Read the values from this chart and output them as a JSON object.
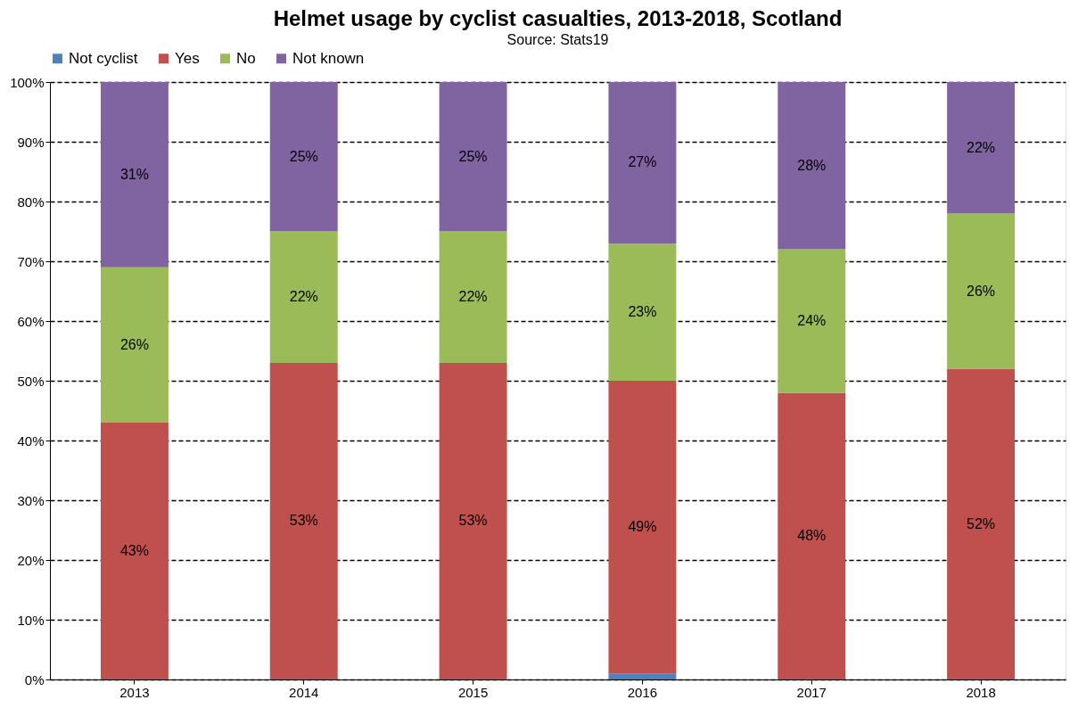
{
  "chart_data": {
    "type": "bar",
    "title": "Helmet usage by cyclist casualties, 2013-2018, Scotland",
    "annotations": [
      "Source: Stats19"
    ],
    "categories": [
      "2013",
      "2014",
      "2015",
      "2016",
      "2017",
      "2018"
    ],
    "stacked": true,
    "series": [
      {
        "name": "Not cyclist",
        "color": "#4f81bd",
        "values": [
          0,
          0,
          0,
          1,
          0,
          0
        ],
        "value_labels": [
          null,
          null,
          null,
          null,
          null,
          null
        ]
      },
      {
        "name": "Yes",
        "color": "#c0504d",
        "values": [
          43,
          53,
          53,
          49,
          48,
          52
        ],
        "value_labels": [
          "43%",
          "53%",
          "53%",
          "49%",
          "48%",
          "52%"
        ]
      },
      {
        "name": "No",
        "color": "#9bbb59",
        "values": [
          26,
          22,
          22,
          23,
          24,
          26
        ],
        "value_labels": [
          "26%",
          "22%",
          "22%",
          "23%",
          "24%",
          "26%"
        ]
      },
      {
        "name": "Not known",
        "color": "#8064a2",
        "values": [
          31,
          25,
          25,
          27,
          28,
          22
        ],
        "value_labels": [
          "31%",
          "25%",
          "25%",
          "27%",
          "28%",
          "22%"
        ]
      }
    ],
    "ylim": [
      0,
      100
    ],
    "yticks": [
      {
        "value": 0,
        "label": "0%"
      },
      {
        "value": 10,
        "label": "10%"
      },
      {
        "value": 20,
        "label": "20%"
      },
      {
        "value": 30,
        "label": "30%"
      },
      {
        "value": 40,
        "label": "40%"
      },
      {
        "value": 50,
        "label": "50%"
      },
      {
        "value": 60,
        "label": "60%"
      },
      {
        "value": 70,
        "label": "70%"
      },
      {
        "value": 80,
        "label": "80%"
      },
      {
        "value": 90,
        "label": "90%"
      },
      {
        "value": 100,
        "label": "100%"
      }
    ],
    "grid": "y",
    "legend": "top"
  }
}
